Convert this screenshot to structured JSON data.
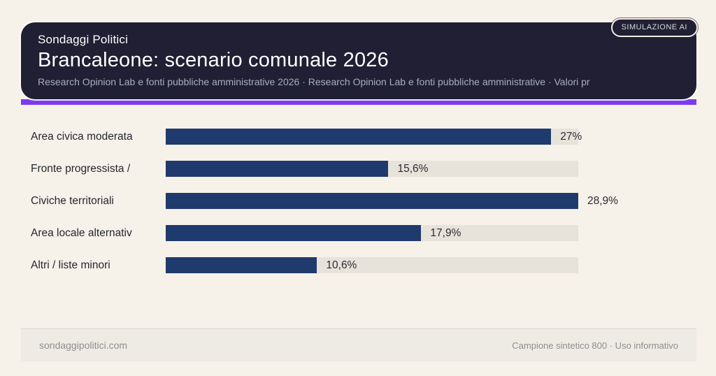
{
  "badge": {
    "label": "SIMULAZIONE AI"
  },
  "header": {
    "kicker": "Sondaggi Politici",
    "title": "Brancaleone: scenario comunale 2026",
    "subtitle": "Research Opinion Lab e fonti pubbliche amministrative 2026 · Research Opinion Lab e fonti pubbliche amministrative · Valori pr"
  },
  "colors": {
    "page_background": "#f6f1e9",
    "card_background": "#201f33",
    "accent_purple": "#7d3bee",
    "bar_navy": "#1f3a6d",
    "bar_track": "#e7e3db",
    "footer_background": "#eeebe4"
  },
  "chart_data": {
    "type": "bar",
    "orientation": "horizontal",
    "title": "Brancaleone: scenario comunale 2026",
    "xlabel": "",
    "ylabel": "",
    "xlim": [
      0,
      28.9
    ],
    "grid": false,
    "legend": false,
    "categories": [
      "Area civica moderata",
      "Fronte progressista /",
      "Civiche territoriali",
      "Area locale alternativ",
      "Altri / liste minori"
    ],
    "values": [
      27,
      15.6,
      28.9,
      17.9,
      10.6
    ],
    "value_labels": [
      "27%",
      "15,6%",
      "28,9%",
      "17,9%",
      "10,6%"
    ]
  },
  "footer": {
    "left": "sondaggipolitici.com",
    "right": "Campione sintetico 800 · Uso informativo"
  }
}
